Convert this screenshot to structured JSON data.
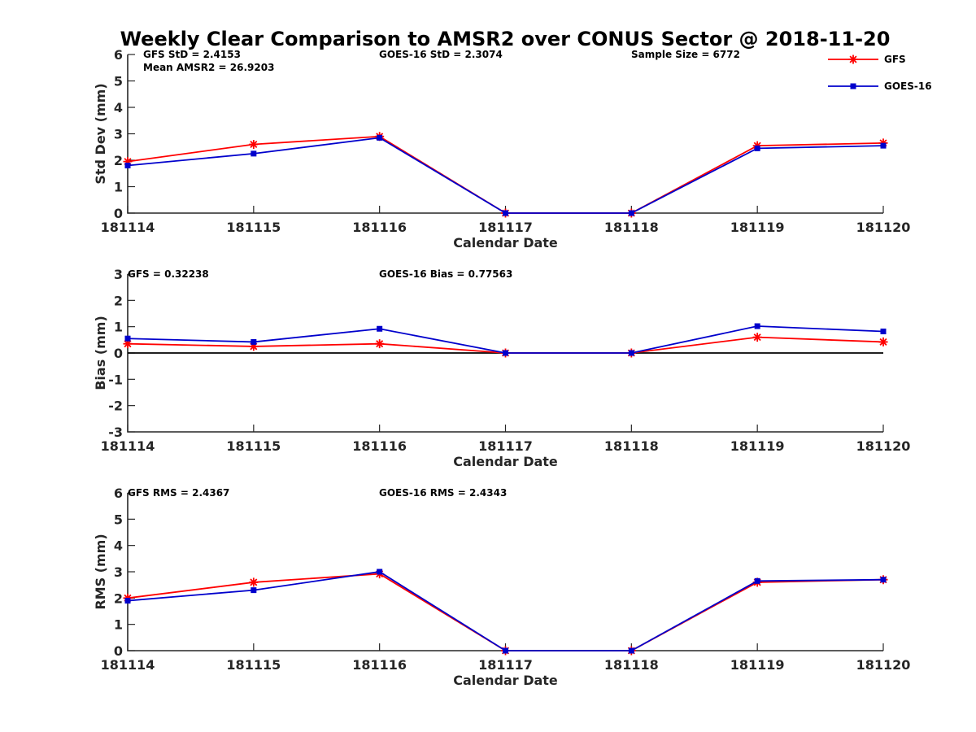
{
  "chart_data": {
    "title": "Weekly Clear Comparison to AMSR2 over CONUS Sector @ 2018-11-20",
    "legend": {
      "placement": "top-right",
      "entries": [
        {
          "name": "GFS",
          "color": "#ff0000",
          "marker": "star"
        },
        {
          "name": "GOES-16",
          "color": "#0000cc",
          "marker": "square"
        }
      ]
    },
    "panels": [
      {
        "type": "line",
        "categories": [
          "181114",
          "181115",
          "181116",
          "181117",
          "181118",
          "181119",
          "181120"
        ],
        "xlabel": "Calendar Date",
        "ylabel": "Std Dev (mm)",
        "ylim": [
          0,
          6
        ],
        "yticks": [
          "0",
          "1",
          "2",
          "3",
          "4",
          "5",
          "6"
        ],
        "zero_line": false,
        "annotations": [
          {
            "id": "gfs-std",
            "text": "GFS StD = 2.4153"
          },
          {
            "id": "mean-amsr2",
            "text": "Mean AMSR2 = 26.9203"
          },
          {
            "id": "goes-std",
            "text": "GOES-16 StD = 2.3074"
          },
          {
            "id": "sample-size",
            "text": "Sample Size = 6772"
          }
        ],
        "series": [
          {
            "name": "GFS",
            "values": [
              1.95,
              2.6,
              2.9,
              0,
              0,
              2.55,
              2.65
            ]
          },
          {
            "name": "GOES-16",
            "values": [
              1.8,
              2.25,
              2.85,
              0,
              0,
              2.45,
              2.55
            ]
          }
        ]
      },
      {
        "type": "line",
        "categories": [
          "181114",
          "181115",
          "181116",
          "181117",
          "181118",
          "181119",
          "181120"
        ],
        "xlabel": "Calendar Date",
        "ylabel": "Bias (mm)",
        "ylim": [
          -3,
          3
        ],
        "yticks": [
          "-3",
          "-2",
          "-1",
          "0",
          "1",
          "2",
          "3"
        ],
        "zero_line": true,
        "annotations": [
          {
            "id": "gfs-bias",
            "text": "GFS = 0.32238"
          },
          {
            "id": "goes-bias",
            "text": "GOES-16 Bias  = 0.77563"
          }
        ],
        "series": [
          {
            "name": "GFS",
            "values": [
              0.35,
              0.25,
              0.35,
              0,
              0,
              0.6,
              0.42
            ]
          },
          {
            "name": "GOES-16",
            "values": [
              0.55,
              0.42,
              0.92,
              0,
              0,
              1.02,
              0.82
            ]
          }
        ]
      },
      {
        "type": "line",
        "categories": [
          "181114",
          "181115",
          "181116",
          "181117",
          "181118",
          "181119",
          "181120"
        ],
        "xlabel": "Calendar Date",
        "ylabel": "RMS (mm)",
        "ylim": [
          0,
          6
        ],
        "yticks": [
          "0",
          "1",
          "2",
          "3",
          "4",
          "5",
          "6"
        ],
        "zero_line": false,
        "annotations": [
          {
            "id": "gfs-rms",
            "text": "GFS RMS = 2.4367"
          },
          {
            "id": "goes-rms",
            "text": "GOES-16 RMS = 2.4343"
          }
        ],
        "series": [
          {
            "name": "GFS",
            "values": [
              2.0,
              2.6,
              2.92,
              0,
              0,
              2.6,
              2.7
            ]
          },
          {
            "name": "GOES-16",
            "values": [
              1.9,
              2.3,
              3.0,
              0,
              0,
              2.65,
              2.7
            ]
          }
        ]
      }
    ]
  }
}
